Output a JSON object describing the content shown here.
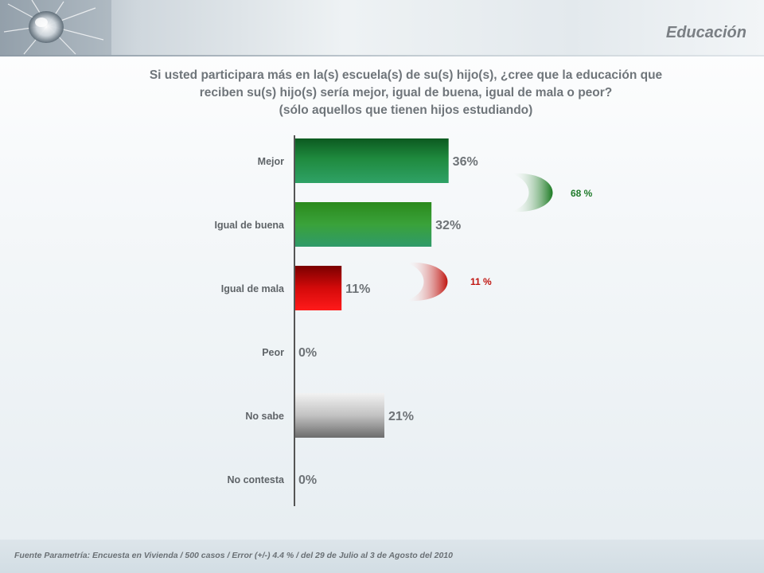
{
  "section_title": "Educación",
  "question": [
    "Si usted participara más en la(s) escuela(s) de su(s) hijo(s), ¿cree que la educación que",
    "reciben su(s) hijo(s) sería mejor, igual de buena, igual de mala o peor?",
    "(sólo aquellos que tienen hijos estudiando)"
  ],
  "footer": "Fuente Parametría: Encuesta en Vivienda  /  500 casos / Error (+/-) 4.4 % / del 29 de Julio al 3 de Agosto del 2010",
  "chart_data": {
    "type": "bar",
    "orientation": "horizontal",
    "categories": [
      "Mejor",
      "Igual de buena",
      "Igual de mala",
      "Peor",
      "No sabe",
      "No contesta"
    ],
    "values": [
      36,
      32,
      11,
      0,
      21,
      0
    ],
    "value_labels": [
      "36%",
      "32%",
      "11%",
      "0%",
      "21%",
      "0%"
    ],
    "colors": [
      "#1a7a3c",
      "#2f9a4a",
      "#d10a0a",
      "#888888",
      "#8a8a8a",
      "#888888"
    ],
    "annotations": [
      {
        "label": "68 %",
        "groups": [
          "Mejor",
          "Igual de buena"
        ],
        "color": "#1f7a2a"
      },
      {
        "label": "11 %",
        "groups": [
          "Igual de mala"
        ],
        "color": "#c0140f"
      }
    ],
    "title": "",
    "xlabel": "",
    "ylabel": "",
    "xlim": [
      0,
      100
    ],
    "grid": false,
    "legend": "none"
  }
}
